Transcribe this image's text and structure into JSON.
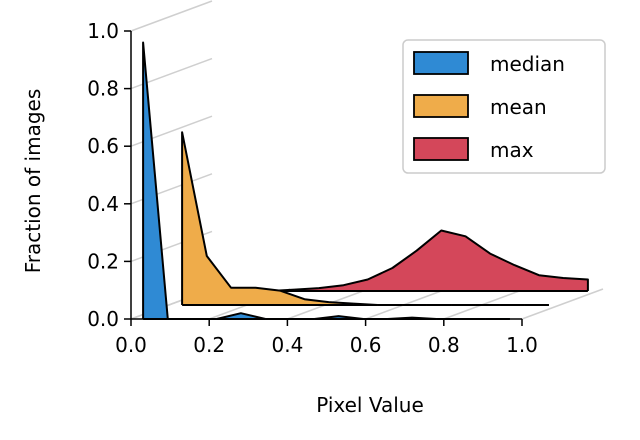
{
  "chart_data": {
    "type": "area",
    "title": "",
    "xlabel": "Pixel Value",
    "ylabel": "Fraction of images",
    "xlim": [
      0.0,
      1.0
    ],
    "ylim": [
      0.0,
      1.0
    ],
    "x_ticks": [
      "0.0",
      "0.2",
      "0.4",
      "0.6",
      "0.8",
      "1.0"
    ],
    "y_ticks": [
      "0.0",
      "0.2",
      "0.4",
      "0.6",
      "0.8",
      "1.0"
    ],
    "x_tick_values": [
      0.0,
      0.2,
      0.4,
      0.6,
      0.8,
      1.0
    ],
    "y_tick_values": [
      0.0,
      0.2,
      0.4,
      0.6,
      0.8,
      1.0
    ],
    "grid": false,
    "legend_position": "top-right",
    "bin_width": 0.0625,
    "style": "stacked-ridgeline",
    "series": [
      {
        "name": "median",
        "color": "#2f8ad4",
        "x": [
          0.031,
          0.094,
          0.156,
          0.219,
          0.281,
          0.344,
          0.406,
          0.469,
          0.531,
          0.594,
          0.656,
          0.719,
          0.781,
          0.844,
          0.906,
          0.969
        ],
        "values": [
          0.96,
          0.0,
          0.0,
          0.0,
          0.02,
          0.0,
          0.0,
          0.0,
          0.01,
          0.0,
          0.0,
          0.005,
          0.0,
          0.0,
          0.0,
          0.0
        ]
      },
      {
        "name": "mean",
        "color": "#efac4a",
        "x": [
          0.031,
          0.094,
          0.156,
          0.219,
          0.281,
          0.344,
          0.406,
          0.469,
          0.531,
          0.594,
          0.656,
          0.719,
          0.781,
          0.844,
          0.906,
          0.969
        ],
        "values": [
          0.6,
          0.17,
          0.06,
          0.06,
          0.05,
          0.02,
          0.01,
          0.005,
          0.0,
          0.0,
          0.0,
          0.0,
          0.0,
          0.0,
          0.0,
          0.0
        ]
      },
      {
        "name": "max",
        "color": "#d4475a",
        "x": [
          0.031,
          0.094,
          0.156,
          0.219,
          0.281,
          0.344,
          0.406,
          0.469,
          0.531,
          0.594,
          0.656,
          0.719,
          0.781,
          0.844,
          0.906,
          0.969
        ],
        "values": [
          0.0,
          0.0,
          0.0,
          0.005,
          0.01,
          0.02,
          0.04,
          0.08,
          0.14,
          0.21,
          0.19,
          0.13,
          0.09,
          0.055,
          0.045,
          0.04
        ]
      }
    ]
  }
}
